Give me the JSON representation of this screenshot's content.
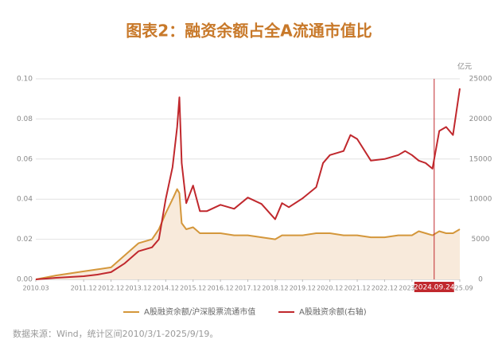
{
  "chart_data": {
    "type": "line",
    "title": "图表2：融资余额占全A流通市值比",
    "y2_label": "亿元",
    "source": "数据来源：Wind，统计区间2010/3/1-2025/9/19。",
    "x": [
      "2010.03",
      "2010.12",
      "2011.12",
      "2012.06",
      "2012.12",
      "2013.06",
      "2013.12",
      "2014.06",
      "2014.09",
      "2014.12",
      "2015.03",
      "2015.05",
      "2015.06",
      "2015.07",
      "2015.09",
      "2015.12",
      "2016.03",
      "2016.06",
      "2016.12",
      "2017.06",
      "2017.12",
      "2018.06",
      "2018.12",
      "2019.03",
      "2019.06",
      "2019.12",
      "2020.06",
      "2020.09",
      "2020.12",
      "2021.06",
      "2021.09",
      "2021.12",
      "2022.06",
      "2022.12",
      "2023.06",
      "2023.09",
      "2023.12",
      "2024.03",
      "2024.06",
      "2024.09",
      "2024.12",
      "2025.03",
      "2025.06",
      "2025.09"
    ],
    "series": [
      {
        "name": "A股融资余额/沪深股票流通市值",
        "color": "#d4973b",
        "fill": "#f8eadb",
        "axis": "y",
        "values": [
          0.0,
          0.002,
          0.004,
          0.005,
          0.006,
          0.012,
          0.018,
          0.02,
          0.025,
          0.033,
          0.04,
          0.045,
          0.043,
          0.028,
          0.025,
          0.026,
          0.023,
          0.023,
          0.023,
          0.022,
          0.022,
          0.021,
          0.02,
          0.022,
          0.022,
          0.022,
          0.023,
          0.023,
          0.023,
          0.022,
          0.022,
          0.022,
          0.021,
          0.021,
          0.022,
          0.022,
          0.022,
          0.024,
          0.023,
          0.022,
          0.024,
          0.023,
          0.023,
          0.025
        ]
      },
      {
        "name": "A股融资余额(右轴)",
        "color": "#c0282d",
        "axis": "y2",
        "values": [
          0,
          200,
          400,
          600,
          900,
          2000,
          3500,
          4000,
          5000,
          10000,
          14000,
          19000,
          22700,
          14500,
          9500,
          11700,
          8500,
          8500,
          9300,
          8800,
          10200,
          9400,
          7500,
          9500,
          9000,
          10100,
          11500,
          14500,
          15500,
          16000,
          18000,
          17500,
          14800,
          15000,
          15500,
          16000,
          15500,
          14800,
          14500,
          13800,
          18500,
          19000,
          18000,
          23800
        ]
      }
    ],
    "xticks": [
      "2010.03",
      "2011.12",
      "2012.12",
      "2013.12",
      "2014.12",
      "2015.12",
      "2016.12",
      "2017.12",
      "2018.12",
      "2019.12",
      "2020.12",
      "2021.12",
      "2022.12",
      "2023.12",
      "2025.09"
    ],
    "marker": "2024.09.24",
    "ylim": [
      0,
      0.1
    ],
    "yticks": [
      {
        "value": 0,
        "label": "0.00"
      },
      {
        "value": 0.02,
        "label": "0.02"
      },
      {
        "value": 0.04,
        "label": "0.04"
      },
      {
        "value": 0.06,
        "label": "0.06"
      },
      {
        "value": 0.08,
        "label": "0.08"
      },
      {
        "value": 0.1,
        "label": "0.10"
      }
    ],
    "y2lim": [
      0,
      25000
    ],
    "y2ticks": [
      0,
      5000,
      10000,
      15000,
      20000,
      25000
    ],
    "grid": true
  }
}
